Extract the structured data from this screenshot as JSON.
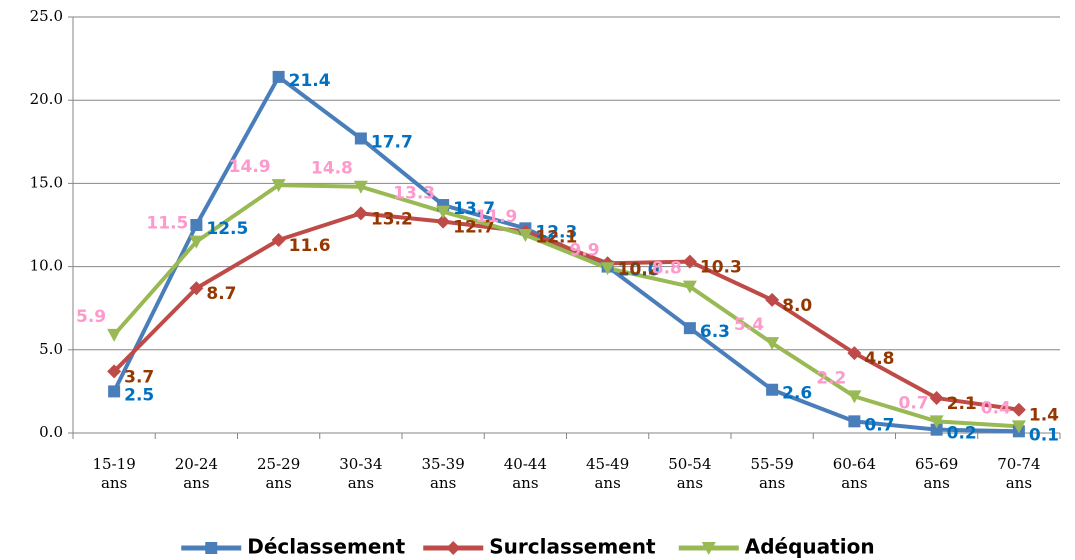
{
  "chart_data": {
    "type": "line",
    "categories": [
      "15-19 ans",
      "20-24 ans",
      "25-29 ans",
      "30-34 ans",
      "35-39 ans",
      "40-44 ans",
      "45-49 ans",
      "50-54 ans",
      "55-59 ans",
      "60-64 ans",
      "65-69 ans",
      "70-74 ans"
    ],
    "series": [
      {
        "name": "Déclassement",
        "color": "#4a7ebb",
        "label_color": "#0070c0",
        "marker": "square",
        "values": [
          2.5,
          12.5,
          21.4,
          17.7,
          13.7,
          12.3,
          10.0,
          6.3,
          2.6,
          0.7,
          0.2,
          0.1
        ],
        "value_labels": [
          "2.5",
          "12.5",
          "21.4",
          "17.7",
          "13.7",
          "12.3",
          "10.0",
          "6.3",
          "2.6",
          "0.7",
          "0.2",
          "0.1"
        ]
      },
      {
        "name": "Surclassement",
        "color": "#be4b48",
        "label_color": "#953700",
        "marker": "diamond",
        "values": [
          3.7,
          8.7,
          11.6,
          13.2,
          12.7,
          12.1,
          10.2,
          10.3,
          8.0,
          4.8,
          2.1,
          1.4
        ],
        "value_labels": [
          "3.7",
          "8.7",
          "11.6",
          "13.2",
          "12.7",
          "12.1",
          "10.2",
          "10.3",
          "8.0",
          "4.8",
          "2.1",
          "1.4"
        ]
      },
      {
        "name": "Adéquation",
        "color": "#98b954",
        "label_color": "#ff99cc",
        "marker": "triangle-down",
        "values": [
          5.9,
          11.5,
          14.9,
          14.8,
          13.3,
          11.9,
          9.9,
          8.8,
          5.4,
          2.2,
          0.7,
          0.4
        ],
        "value_labels": [
          "5.9",
          "11.5",
          "14.9",
          "14.8",
          "13.3",
          "11.9",
          "9.9",
          "8.8",
          "5.4",
          "2.2",
          "0.7",
          "0.4"
        ]
      }
    ],
    "ylim": [
      0,
      25
    ],
    "yticks": [
      {
        "value": 0,
        "label": "0.0"
      },
      {
        "value": 5,
        "label": "5.0"
      },
      {
        "value": 10,
        "label": "10.0"
      },
      {
        "value": 15,
        "label": "15.0"
      },
      {
        "value": 20,
        "label": "20.0"
      },
      {
        "value": 25,
        "label": "25.0"
      }
    ],
    "grid": true,
    "legend": "bottom"
  }
}
